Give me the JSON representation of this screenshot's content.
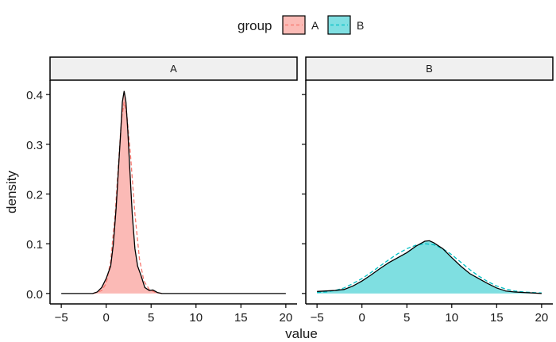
{
  "chart_data": {
    "type": "area",
    "xlabel": "value",
    "ylabel": "density",
    "xlim": [
      -6.25,
      21.25
    ],
    "ylim": [
      -0.021,
      0.429
    ],
    "x_ticks": [
      -5,
      0,
      5,
      10,
      15,
      20
    ],
    "x_tick_labels": [
      "−5",
      "0",
      "5",
      "10",
      "15",
      "20"
    ],
    "y_ticks": [
      0.0,
      0.1,
      0.2,
      0.3,
      0.4
    ],
    "y_tick_labels": [
      "0.0",
      "0.1",
      "0.2",
      "0.3",
      "0.4"
    ],
    "legend": {
      "title": "group",
      "position": "top",
      "entries": [
        {
          "label": "A",
          "fill": "#F8766D",
          "line": "#F8766D"
        },
        {
          "label": "B",
          "fill": "#00BFC4",
          "line": "#00BFC4"
        }
      ]
    },
    "facets": [
      {
        "label": "A",
        "fill": "#F8766D",
        "fill_alpha": 0.5,
        "reference_line": "#F8766D",
        "kde": [
          [
            -5,
            0
          ],
          [
            -1.5,
            0
          ],
          [
            -1,
            0.003
          ],
          [
            -0.5,
            0.012
          ],
          [
            0,
            0.03
          ],
          [
            0.5,
            0.055
          ],
          [
            0.8,
            0.1
          ],
          [
            1.1,
            0.17
          ],
          [
            1.4,
            0.26
          ],
          [
            1.6,
            0.32
          ],
          [
            1.8,
            0.385
          ],
          [
            2.0,
            0.407
          ],
          [
            2.2,
            0.385
          ],
          [
            2.4,
            0.33
          ],
          [
            2.6,
            0.26
          ],
          [
            2.9,
            0.16
          ],
          [
            3.2,
            0.09
          ],
          [
            3.5,
            0.055
          ],
          [
            3.9,
            0.035
          ],
          [
            4.3,
            0.012
          ],
          [
            4.8,
            0.006
          ],
          [
            5.2,
            0.007
          ],
          [
            5.7,
            0.002
          ],
          [
            6.2,
            0
          ],
          [
            20,
            0
          ]
        ],
        "reference": [
          [
            -1.5,
            0
          ],
          [
            -1,
            0.002
          ],
          [
            -0.5,
            0.006
          ],
          [
            0,
            0.02
          ],
          [
            0.5,
            0.065
          ],
          [
            1.0,
            0.16
          ],
          [
            1.4,
            0.27
          ],
          [
            1.7,
            0.35
          ],
          [
            2.0,
            0.385
          ],
          [
            2.3,
            0.36
          ],
          [
            2.7,
            0.28
          ],
          [
            3.2,
            0.16
          ],
          [
            3.7,
            0.07
          ],
          [
            4.2,
            0.025
          ],
          [
            4.8,
            0.008
          ],
          [
            5.5,
            0.002
          ],
          [
            6.2,
            0
          ]
        ]
      },
      {
        "label": "B",
        "fill": "#00BFC4",
        "fill_alpha": 0.5,
        "reference_line": "#00BFC4",
        "kde": [
          [
            -5,
            0.004
          ],
          [
            -4,
            0.005
          ],
          [
            -3,
            0.006
          ],
          [
            -2,
            0.008
          ],
          [
            -1,
            0.015
          ],
          [
            0,
            0.025
          ],
          [
            1,
            0.037
          ],
          [
            2,
            0.05
          ],
          [
            3,
            0.062
          ],
          [
            4,
            0.072
          ],
          [
            5,
            0.082
          ],
          [
            6,
            0.095
          ],
          [
            7,
            0.105
          ],
          [
            7.5,
            0.106
          ],
          [
            8,
            0.102
          ],
          [
            9,
            0.09
          ],
          [
            10,
            0.072
          ],
          [
            11,
            0.055
          ],
          [
            12,
            0.04
          ],
          [
            13,
            0.03
          ],
          [
            14,
            0.02
          ],
          [
            15,
            0.011
          ],
          [
            16,
            0.005
          ],
          [
            17,
            0.003
          ],
          [
            18,
            0.002
          ],
          [
            19,
            0.001
          ],
          [
            20,
            0
          ]
        ],
        "reference": [
          [
            -5,
            0.002
          ],
          [
            -4,
            0.003
          ],
          [
            -3,
            0.006
          ],
          [
            -2,
            0.011
          ],
          [
            -1,
            0.02
          ],
          [
            0,
            0.03
          ],
          [
            1,
            0.042
          ],
          [
            2,
            0.055
          ],
          [
            3,
            0.068
          ],
          [
            4,
            0.08
          ],
          [
            5,
            0.09
          ],
          [
            6,
            0.097
          ],
          [
            7,
            0.1
          ],
          [
            8,
            0.098
          ],
          [
            9,
            0.09
          ],
          [
            10,
            0.078
          ],
          [
            11,
            0.063
          ],
          [
            12,
            0.048
          ],
          [
            13,
            0.035
          ],
          [
            14,
            0.024
          ],
          [
            15,
            0.015
          ],
          [
            16,
            0.009
          ],
          [
            17,
            0.005
          ],
          [
            18,
            0.003
          ],
          [
            19,
            0.002
          ],
          [
            20,
            0.001
          ]
        ]
      }
    ]
  }
}
